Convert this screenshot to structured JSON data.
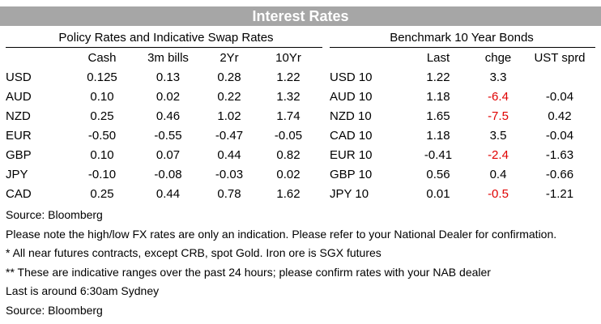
{
  "title": "Interest Rates",
  "policy": {
    "heading": "Policy Rates and Indicative Swap Rates",
    "columns": [
      "Cash",
      "3m bills",
      "2Yr",
      "10Yr"
    ],
    "rows": [
      {
        "ccy": "USD",
        "values": [
          "0.125",
          "0.13",
          "0.28",
          "1.22"
        ]
      },
      {
        "ccy": "AUD",
        "values": [
          "0.10",
          "0.02",
          "0.22",
          "1.32"
        ]
      },
      {
        "ccy": "NZD",
        "values": [
          "0.25",
          "0.46",
          "1.02",
          "1.74"
        ]
      },
      {
        "ccy": "EUR",
        "values": [
          "-0.50",
          "-0.55",
          "-0.47",
          "-0.05"
        ]
      },
      {
        "ccy": "GBP",
        "values": [
          "0.10",
          "0.07",
          "0.44",
          "0.82"
        ]
      },
      {
        "ccy": "JPY",
        "values": [
          "-0.10",
          "-0.08",
          "-0.03",
          "0.02"
        ]
      },
      {
        "ccy": "CAD",
        "values": [
          "0.25",
          "0.44",
          "0.78",
          "1.62"
        ]
      }
    ]
  },
  "bonds": {
    "heading": "Benchmark 10 Year Bonds",
    "columns": [
      "Last",
      "chge",
      "UST sprd"
    ],
    "rows": [
      {
        "name": "USD 10",
        "last": "1.22",
        "chge": "3.3",
        "sprd": ""
      },
      {
        "name": "AUD 10",
        "last": "1.18",
        "chge": "-6.4",
        "sprd": "-0.04"
      },
      {
        "name": "NZD 10",
        "last": "1.65",
        "chge": "-7.5",
        "sprd": "0.42"
      },
      {
        "name": "CAD 10",
        "last": "1.18",
        "chge": "3.5",
        "sprd": "-0.04"
      },
      {
        "name": "EUR 10",
        "last": "-0.41",
        "chge": "-2.4",
        "sprd": "-1.63"
      },
      {
        "name": "GBP 10",
        "last": "0.56",
        "chge": "0.4",
        "sprd": "-0.66"
      },
      {
        "name": "JPY 10",
        "last": "0.01",
        "chge": "-0.5",
        "sprd": "-1.21"
      }
    ]
  },
  "negative_color": "#e00000",
  "notes": [
    "Source: Bloomberg",
    "Please note the high/low FX rates are only an indication. Please refer to your National Dealer for confirmation.",
    "* All near futures contracts, except CRB, spot Gold.  Iron ore is SGX futures",
    "** These are indicative ranges over the past 24 hours; please confirm rates with your NAB dealer",
    "Last is around 6:30am Sydney",
    "Source: Bloomberg"
  ]
}
